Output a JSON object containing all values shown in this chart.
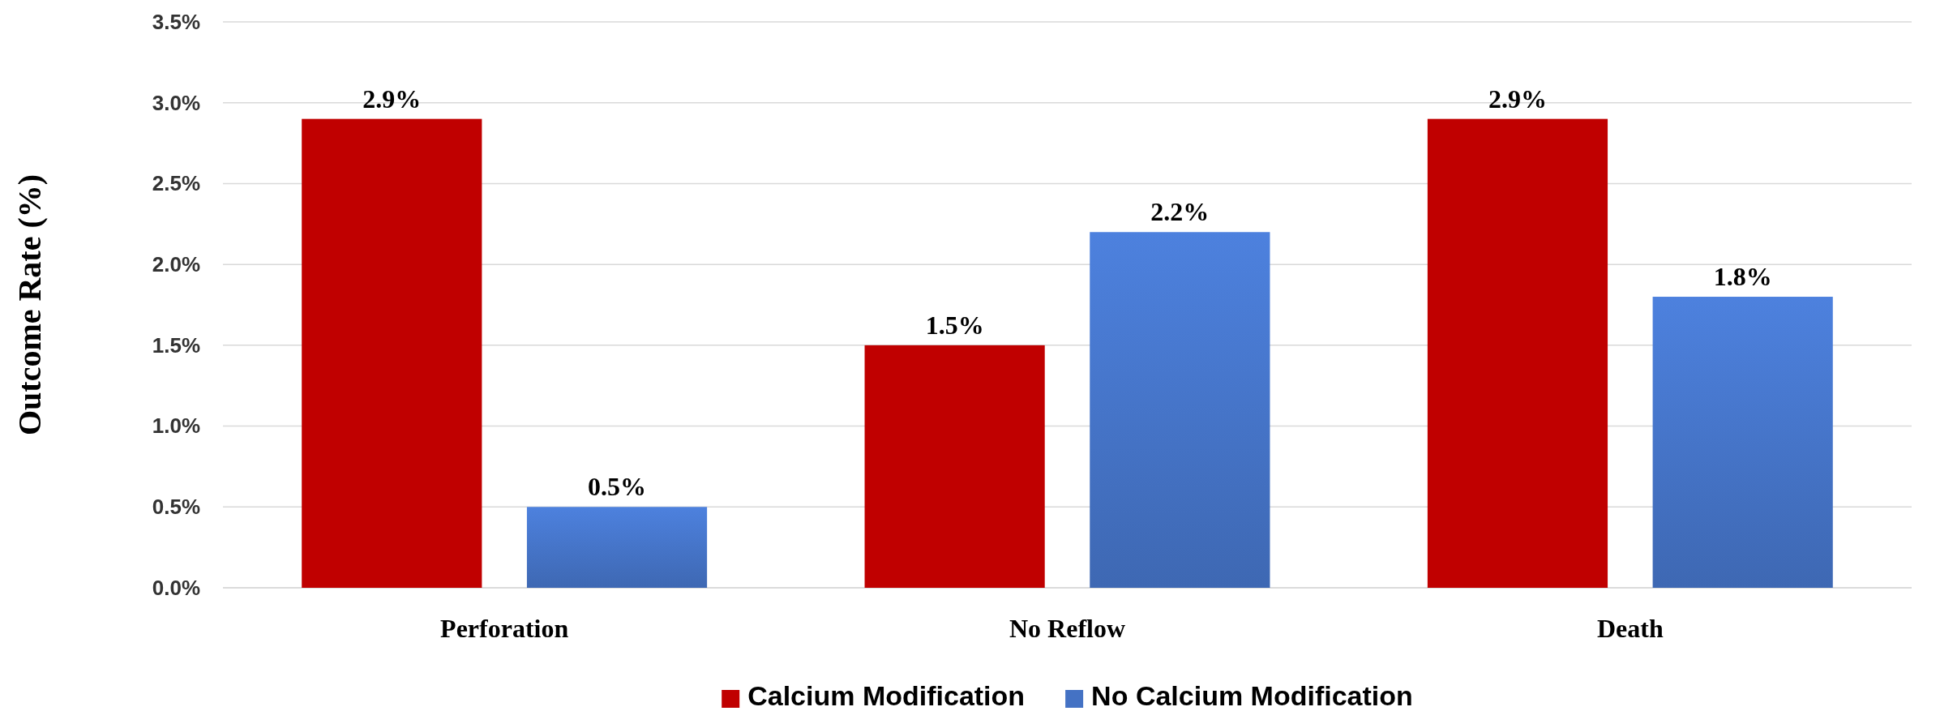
{
  "chart_data": {
    "type": "bar",
    "ylabel": "Outcome Rate (%)",
    "categories": [
      "Perforation",
      "No Reflow",
      "Death"
    ],
    "series": [
      {
        "name": "Calcium Modification",
        "color": "#c00000",
        "values": [
          2.9,
          1.5,
          2.9
        ],
        "value_labels": [
          "2.9%",
          "1.5%",
          "2.9%"
        ]
      },
      {
        "name": "No Calcium Modification",
        "color": "#4472c4",
        "values": [
          0.5,
          2.2,
          1.8
        ],
        "value_labels": [
          "0.5%",
          "2.2%",
          "1.8%"
        ]
      }
    ],
    "ylim": [
      0,
      3.5
    ],
    "yticks": [
      {
        "value": 0,
        "label": "0.0%"
      },
      {
        "value": 0.5,
        "label": "0.5%"
      },
      {
        "value": 1,
        "label": "1.0%"
      },
      {
        "value": 1.5,
        "label": "1.5%"
      },
      {
        "value": 2,
        "label": "2.0%"
      },
      {
        "value": 2.5,
        "label": "2.5%"
      },
      {
        "value": 3,
        "label": "3.0%"
      },
      {
        "value": 3.5,
        "label": "3.5%"
      }
    ],
    "grid": "y",
    "legend": "bottom"
  }
}
